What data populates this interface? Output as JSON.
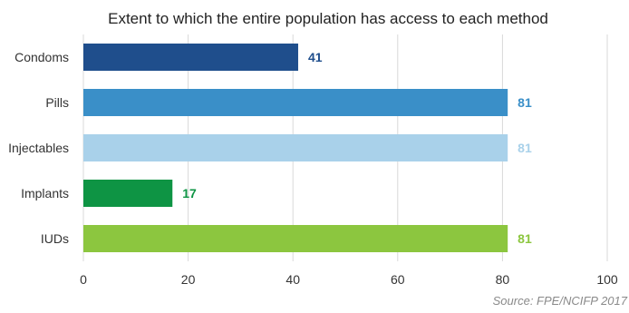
{
  "chart_data": {
    "type": "bar",
    "orientation": "horizontal",
    "title": "Extent to which the entire population has access to each method",
    "categories": [
      "Condoms",
      "Pills",
      "Injectables",
      "Implants",
      "IUDs"
    ],
    "values": [
      41,
      81,
      81,
      17,
      81
    ],
    "colors": [
      "#1f4e8c",
      "#3a8fc8",
      "#a9d1ea",
      "#0e9444",
      "#8cc63f"
    ],
    "label_colors": [
      "#1f4e8c",
      "#3a8fc8",
      "#a9d1ea",
      "#0e9444",
      "#8cc63f"
    ],
    "xlim": [
      0,
      100
    ],
    "xticks": [
      0,
      20,
      40,
      60,
      80,
      100
    ],
    "xlabel": "",
    "ylabel": "",
    "grid": "vertical",
    "legend": "none",
    "source": "Source: FPE/NCIFP 2017"
  }
}
